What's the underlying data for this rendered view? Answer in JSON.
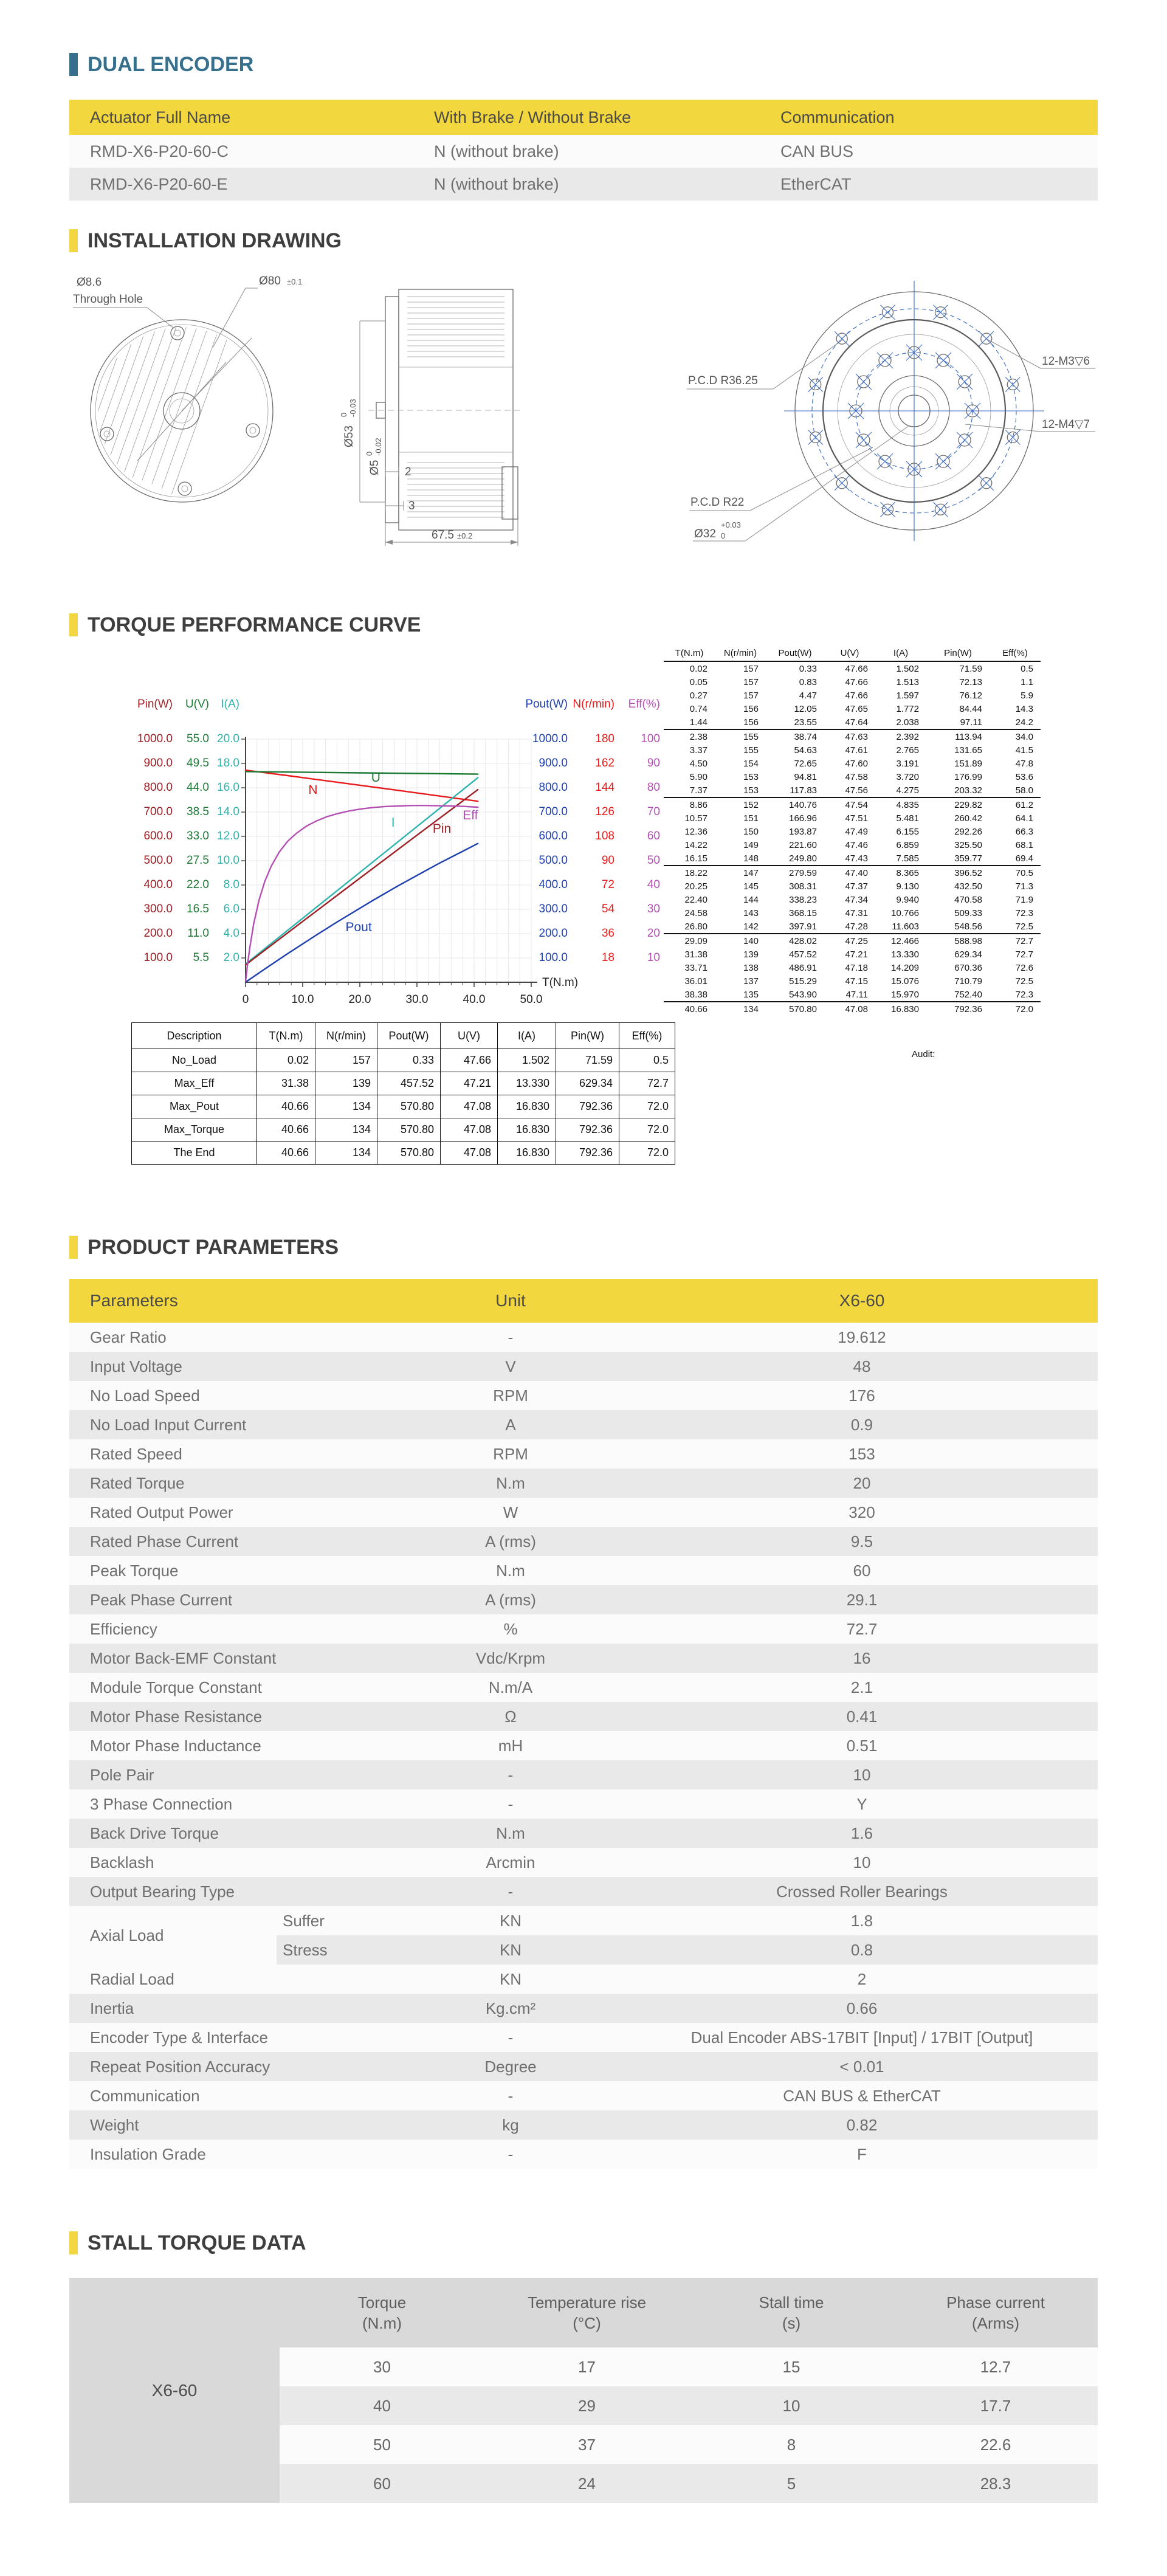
{
  "colors": {
    "accent_teal": "#36708c",
    "accent_yellow": "#f3d73e",
    "row_light": "#fbfbfb",
    "row_gray": "#e9e9e9",
    "stall_gray": "#d9d9d9",
    "curve_n": "#e81c1c",
    "curve_u": "#1d7a35",
    "curve_i": "#2fb3ac",
    "curve_pin": "#9b1f24",
    "curve_pout": "#1e3fae",
    "curve_eff": "#b44fb4"
  },
  "sections": {
    "dual_encoder": {
      "title": "DUAL ENCODER",
      "table": {
        "headers": [
          "Actuator Full Name",
          "With Brake / Without Brake",
          "Communication"
        ],
        "rows": [
          [
            "RMD-X6-P20-60-C",
            "N (without brake)",
            "CAN BUS"
          ],
          [
            "RMD-X6-P20-60-E",
            "N (without brake)",
            "EtherCAT"
          ]
        ]
      }
    },
    "installation_drawing": {
      "title": "INSTALLATION DRAWING",
      "labels": {
        "through_hole_dia": "Ø8.6",
        "through_hole": "Through Hole",
        "outer_dia": "Ø80",
        "outer_tol": "±0.1",
        "dia53": "Ø53",
        "dia53_tol_top": "0",
        "dia53_tol_bot": "-0.03",
        "dia5": "Ø5",
        "dia5_tol_top": "0",
        "dia5_tol_bot": "-0.02",
        "dim2": "2",
        "dim3": "3",
        "length": "67.5",
        "length_tol": "±0.2",
        "pcd1": "P.C.D R36.25",
        "pcd2": "P.C.D R22",
        "dia32": "Ø32",
        "dia32_tol_top": "+0.03",
        "dia32_tol_bot": "0",
        "m3": "12-M3▽6",
        "m4": "12-M4▽7"
      }
    },
    "torque_curve": {
      "title": "TORQUE PERFORMANCE CURVE",
      "audit_label": "Audit:",
      "perf_table": {
        "headers": [
          "T(N.m)",
          "N(r/min)",
          "Pout(W)",
          "U(V)",
          "I(A)",
          "Pin(W)",
          "Eff(%)"
        ],
        "separators": [
          4,
          9,
          14,
          19,
          24
        ],
        "rows": [
          [
            "0.02",
            "157",
            "0.33",
            "47.66",
            "1.502",
            "71.59",
            "0.5"
          ],
          [
            "0.05",
            "157",
            "0.83",
            "47.66",
            "1.513",
            "72.13",
            "1.1"
          ],
          [
            "0.27",
            "157",
            "4.47",
            "47.66",
            "1.597",
            "76.12",
            "5.9"
          ],
          [
            "0.74",
            "156",
            "12.05",
            "47.65",
            "1.772",
            "84.44",
            "14.3"
          ],
          [
            "1.44",
            "156",
            "23.55",
            "47.64",
            "2.038",
            "97.11",
            "24.2"
          ],
          [
            "2.38",
            "155",
            "38.74",
            "47.63",
            "2.392",
            "113.94",
            "34.0"
          ],
          [
            "3.37",
            "155",
            "54.63",
            "47.61",
            "2.765",
            "131.65",
            "41.5"
          ],
          [
            "4.50",
            "154",
            "72.65",
            "47.60",
            "3.191",
            "151.89",
            "47.8"
          ],
          [
            "5.90",
            "153",
            "94.81",
            "47.58",
            "3.720",
            "176.99",
            "53.6"
          ],
          [
            "7.37",
            "153",
            "117.83",
            "47.56",
            "4.275",
            "203.32",
            "58.0"
          ],
          [
            "8.86",
            "152",
            "140.76",
            "47.54",
            "4.835",
            "229.82",
            "61.2"
          ],
          [
            "10.57",
            "151",
            "166.96",
            "47.51",
            "5.481",
            "260.42",
            "64.1"
          ],
          [
            "12.36",
            "150",
            "193.87",
            "47.49",
            "6.155",
            "292.26",
            "66.3"
          ],
          [
            "14.22",
            "149",
            "221.60",
            "47.46",
            "6.859",
            "325.50",
            "68.1"
          ],
          [
            "16.15",
            "148",
            "249.80",
            "47.43",
            "7.585",
            "359.77",
            "69.4"
          ],
          [
            "18.22",
            "147",
            "279.59",
            "47.40",
            "8.365",
            "396.52",
            "70.5"
          ],
          [
            "20.25",
            "145",
            "308.31",
            "47.37",
            "9.130",
            "432.50",
            "71.3"
          ],
          [
            "22.40",
            "144",
            "338.23",
            "47.34",
            "9.940",
            "470.58",
            "71.9"
          ],
          [
            "24.58",
            "143",
            "368.15",
            "47.31",
            "10.766",
            "509.33",
            "72.3"
          ],
          [
            "26.80",
            "142",
            "397.91",
            "47.28",
            "11.603",
            "548.56",
            "72.5"
          ],
          [
            "29.09",
            "140",
            "428.02",
            "47.25",
            "12.466",
            "588.98",
            "72.7"
          ],
          [
            "31.38",
            "139",
            "457.52",
            "47.21",
            "13.330",
            "629.34",
            "72.7"
          ],
          [
            "33.71",
            "138",
            "486.91",
            "47.18",
            "14.209",
            "670.36",
            "72.6"
          ],
          [
            "36.01",
            "137",
            "515.29",
            "47.15",
            "15.076",
            "710.79",
            "72.5"
          ],
          [
            "38.38",
            "135",
            "543.90",
            "47.11",
            "15.970",
            "752.40",
            "72.3"
          ],
          [
            "40.66",
            "134",
            "570.80",
            "47.08",
            "16.830",
            "792.36",
            "72.0"
          ]
        ]
      },
      "summary_table": {
        "headers": [
          "Description",
          "T(N.m)",
          "N(r/min)",
          "Pout(W)",
          "U(V)",
          "I(A)",
          "Pin(W)",
          "Eff(%)"
        ],
        "rows": [
          [
            "No_Load",
            "0.02",
            "157",
            "0.33",
            "47.66",
            "1.502",
            "71.59",
            "0.5"
          ],
          [
            "Max_Eff",
            "31.38",
            "139",
            "457.52",
            "47.21",
            "13.330",
            "629.34",
            "72.7"
          ],
          [
            "Max_Pout",
            "40.66",
            "134",
            "570.80",
            "47.08",
            "16.830",
            "792.36",
            "72.0"
          ],
          [
            "Max_Torque",
            "40.66",
            "134",
            "570.80",
            "47.08",
            "16.830",
            "792.36",
            "72.0"
          ],
          [
            "The End",
            "40.66",
            "134",
            "570.80",
            "47.08",
            "16.830",
            "792.36",
            "72.0"
          ]
        ]
      }
    },
    "product_parameters": {
      "title": "PRODUCT PARAMETERS",
      "headers": [
        "Parameters",
        "Unit",
        "X6-60"
      ],
      "rows": [
        {
          "name": "Gear Ratio",
          "unit": "-",
          "value": "19.612"
        },
        {
          "name": "Input Voltage",
          "unit": "V",
          "value": "48"
        },
        {
          "name": "No Load Speed",
          "unit": "RPM",
          "value": "176"
        },
        {
          "name": "No Load Input Current",
          "unit": "A",
          "value": "0.9"
        },
        {
          "name": "Rated Speed",
          "unit": "RPM",
          "value": "153"
        },
        {
          "name": "Rated Torque",
          "unit": "N.m",
          "value": "20"
        },
        {
          "name": "Rated Output Power",
          "unit": "W",
          "value": "320"
        },
        {
          "name": "Rated Phase Current",
          "unit": "A (rms)",
          "value": "9.5"
        },
        {
          "name": "Peak Torque",
          "unit": "N.m",
          "value": "60"
        },
        {
          "name": "Peak Phase Current",
          "unit": "A (rms)",
          "value": "29.1"
        },
        {
          "name": "Efficiency",
          "unit": "%",
          "value": "72.7"
        },
        {
          "name": "Motor Back-EMF Constant",
          "unit": "Vdc/Krpm",
          "value": "16"
        },
        {
          "name": "Module Torque Constant",
          "unit": "N.m/A",
          "value": "2.1"
        },
        {
          "name": "Motor Phase Resistance",
          "unit": "Ω",
          "value": "0.41"
        },
        {
          "name": "Motor Phase Inductance",
          "unit": "mH",
          "value": "0.51"
        },
        {
          "name": "Pole Pair",
          "unit": "-",
          "value": "10"
        },
        {
          "name": "3 Phase Connection",
          "unit": "-",
          "value": "Y"
        },
        {
          "name": "Back Drive Torque",
          "unit": "N.m",
          "value": "1.6"
        },
        {
          "name": "Backlash",
          "unit": "Arcmin",
          "value": "10"
        },
        {
          "name": "Output Bearing Type",
          "unit": "-",
          "value": "Crossed Roller Bearings"
        },
        {
          "group": "Axial Load",
          "subs": [
            {
              "sub": "Suffer",
              "unit": "KN",
              "value": "1.8"
            },
            {
              "sub": "Stress",
              "unit": "KN",
              "value": "0.8"
            }
          ]
        },
        {
          "name": "Radial Load",
          "unit": "KN",
          "value": "2"
        },
        {
          "name": "Inertia",
          "unit": "Kg.cm²",
          "value": "0.66"
        },
        {
          "name": "Encoder Type & Interface",
          "unit": "-",
          "value": "Dual Encoder ABS-17BIT [Input] / 17BIT [Output]"
        },
        {
          "name": "Repeat Position Accuracy",
          "unit": "Degree",
          "value": "< 0.01"
        },
        {
          "name": "Communication",
          "unit": "-",
          "value": "CAN BUS & EtherCAT"
        },
        {
          "name": "Weight",
          "unit": "kg",
          "value": "0.82"
        },
        {
          "name": "Insulation Grade",
          "unit": "-",
          "value": "F"
        }
      ]
    },
    "stall_torque": {
      "title": "STALL TORQUE DATA",
      "model": "X6-60",
      "headers": [
        {
          "line1": "Torque",
          "line2": "(N.m)"
        },
        {
          "line1": "Temperature rise",
          "line2": "(°C)"
        },
        {
          "line1": "Stall time",
          "line2": "(s)"
        },
        {
          "line1": "Phase current",
          "line2": "(Arms)"
        }
      ],
      "rows": [
        [
          "30",
          "17",
          "15",
          "12.7"
        ],
        [
          "40",
          "29",
          "10",
          "17.7"
        ],
        [
          "50",
          "37",
          "8",
          "22.6"
        ],
        [
          "60",
          "24",
          "5",
          "28.3"
        ]
      ]
    }
  },
  "chart_data": {
    "type": "line",
    "title": "TORQUE PERFORMANCE CURVE",
    "xlabel": "T(N.m)",
    "xlim": [
      0,
      50
    ],
    "grid": true,
    "x_tick_values": [
      0,
      10,
      20,
      30,
      40,
      50
    ],
    "x_tick_labels": [
      "0",
      "10.0",
      "20.0",
      "30.0",
      "40.0",
      "50.0"
    ],
    "axes_left": [
      {
        "name": "Pin(W)",
        "color": "#9b1f24",
        "max": 1000,
        "ticks": [
          "1000.0",
          "900.0",
          "800.0",
          "700.0",
          "600.0",
          "500.0",
          "400.0",
          "300.0",
          "200.0",
          "100.0"
        ]
      },
      {
        "name": "U(V)",
        "color": "#1d7a35",
        "max": 55,
        "ticks": [
          "55.0",
          "49.5",
          "44.0",
          "38.5",
          "33.0",
          "27.5",
          "22.0",
          "16.5",
          "11.0",
          "5.5"
        ]
      },
      {
        "name": "I(A)",
        "color": "#2fb3ac",
        "max": 20,
        "ticks": [
          "20.0",
          "18.0",
          "16.0",
          "14.0",
          "12.0",
          "10.0",
          "8.0",
          "6.0",
          "4.0",
          "2.0"
        ]
      }
    ],
    "axes_right": [
      {
        "name": "Pout(W)",
        "color": "#1e3fae",
        "max": 1000,
        "ticks": [
          "1000.0",
          "900.0",
          "800.0",
          "700.0",
          "600.0",
          "500.0",
          "400.0",
          "300.0",
          "200.0",
          "100.0"
        ]
      },
      {
        "name": "N(r/min)",
        "color": "#e81c1c",
        "max": 180,
        "ticks": [
          "180",
          "162",
          "144",
          "126",
          "108",
          "90",
          "72",
          "54",
          "36",
          "18"
        ]
      },
      {
        "name": "Eff(%)",
        "color": "#b44fb4",
        "max": 100,
        "ticks": [
          "100",
          "90",
          "80",
          "70",
          "60",
          "50",
          "40",
          "30",
          "20",
          "10"
        ]
      }
    ],
    "series": [
      {
        "name": "N",
        "color": "#e81c1c",
        "ymax": 180,
        "points": [
          [
            0,
            157
          ],
          [
            7.37,
            153
          ],
          [
            16.15,
            148
          ],
          [
            26.8,
            142
          ],
          [
            33.71,
            138
          ],
          [
            40.66,
            134
          ]
        ]
      },
      {
        "name": "U",
        "color": "#1d7a35",
        "ymax": 55,
        "points": [
          [
            0,
            47.66
          ],
          [
            20.25,
            47.37
          ],
          [
            40.66,
            47.08
          ]
        ]
      },
      {
        "name": "I",
        "color": "#2fb3ac",
        "ymax": 20,
        "points": [
          [
            0,
            1.502
          ],
          [
            5.9,
            3.72
          ],
          [
            10.57,
            5.481
          ],
          [
            20.25,
            9.13
          ],
          [
            31.38,
            13.33
          ],
          [
            40.66,
            16.83
          ]
        ]
      },
      {
        "name": "Pin",
        "color": "#9b1f24",
        "ymax": 1000,
        "points": [
          [
            0,
            71.59
          ],
          [
            5.9,
            176.99
          ],
          [
            10.57,
            260.42
          ],
          [
            20.25,
            432.5
          ],
          [
            31.38,
            629.34
          ],
          [
            40.66,
            792.36
          ]
        ]
      },
      {
        "name": "Pout",
        "color": "#1e3fae",
        "ymax": 1000,
        "points": [
          [
            0,
            0.33
          ],
          [
            3.37,
            54.63
          ],
          [
            7.37,
            117.83
          ],
          [
            12.36,
            193.87
          ],
          [
            16.15,
            249.8
          ],
          [
            22.4,
            338.23
          ],
          [
            26.8,
            397.91
          ],
          [
            33.71,
            486.91
          ],
          [
            40.66,
            570.8
          ]
        ]
      },
      {
        "name": "Eff",
        "color": "#b44fb4",
        "ymax": 100,
        "points": [
          [
            0.02,
            0.5
          ],
          [
            0.27,
            5.9
          ],
          [
            0.74,
            14.3
          ],
          [
            1.44,
            24.2
          ],
          [
            2.38,
            34
          ],
          [
            3.37,
            41.5
          ],
          [
            4.5,
            47.8
          ],
          [
            5.9,
            53.6
          ],
          [
            7.37,
            58
          ],
          [
            8.86,
            61.2
          ],
          [
            10.57,
            64.1
          ],
          [
            12.36,
            66.3
          ],
          [
            14.22,
            68.1
          ],
          [
            16.15,
            69.4
          ],
          [
            18.22,
            70.5
          ],
          [
            20.25,
            71.3
          ],
          [
            22.4,
            71.9
          ],
          [
            24.58,
            72.3
          ],
          [
            26.8,
            72.5
          ],
          [
            29.09,
            72.7
          ],
          [
            31.38,
            72.7
          ],
          [
            33.71,
            72.6
          ],
          [
            36.01,
            72.5
          ],
          [
            38.38,
            72.3
          ],
          [
            40.66,
            72
          ]
        ]
      }
    ],
    "curve_labels": [
      {
        "text": "N",
        "color": "#e81c1c",
        "fx": 0.22,
        "fy": 0.225
      },
      {
        "text": "U",
        "color": "#1d7a35",
        "fx": 0.44,
        "fy": 0.175
      },
      {
        "text": "I",
        "color": "#2fb3ac",
        "fx": 0.51,
        "fy": 0.36
      },
      {
        "text": "Pin",
        "color": "#9b1f24",
        "fx": 0.655,
        "fy": 0.385
      },
      {
        "text": "Eff",
        "color": "#b44fb4",
        "fx": 0.76,
        "fy": 0.33
      },
      {
        "text": "Pout",
        "color": "#1e3fae",
        "fx": 0.35,
        "fy": 0.79
      }
    ]
  }
}
